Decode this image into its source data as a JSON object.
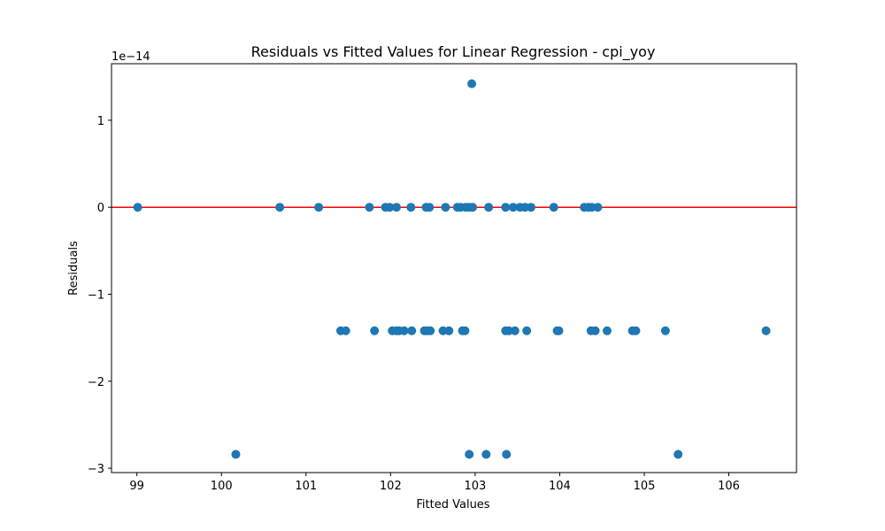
{
  "chart_data": {
    "type": "scatter",
    "title": "Residuals vs Fitted Values for Linear Regression - cpi_yoy",
    "xlabel": "Fitted Values",
    "ylabel": "Residuals",
    "y_offset_label": "1e−14",
    "xlim": [
      98.7,
      106.8
    ],
    "ylim": [
      -3.05,
      1.65
    ],
    "x_ticks": [
      99,
      100,
      101,
      102,
      103,
      104,
      105,
      106
    ],
    "y_ticks": [
      -3,
      -2,
      -1,
      0,
      1
    ],
    "x_tick_labels": [
      "99",
      "100",
      "101",
      "102",
      "103",
      "104",
      "105",
      "106"
    ],
    "y_tick_labels": [
      "−3",
      "−2",
      "−1",
      "0",
      "1"
    ],
    "reference_line": {
      "y": 0,
      "color": "#ff0000"
    },
    "grid": false,
    "point_color": "#1f77b4",
    "points": [
      {
        "x": 99.01,
        "y": 0
      },
      {
        "x": 100.69,
        "y": 0
      },
      {
        "x": 101.15,
        "y": 0
      },
      {
        "x": 101.75,
        "y": 0
      },
      {
        "x": 101.94,
        "y": 0
      },
      {
        "x": 101.99,
        "y": 0
      },
      {
        "x": 102.07,
        "y": 0
      },
      {
        "x": 102.24,
        "y": 0
      },
      {
        "x": 102.42,
        "y": 0
      },
      {
        "x": 102.46,
        "y": 0
      },
      {
        "x": 102.65,
        "y": 0
      },
      {
        "x": 102.79,
        "y": 0
      },
      {
        "x": 102.83,
        "y": 0
      },
      {
        "x": 102.89,
        "y": 0
      },
      {
        "x": 102.93,
        "y": 0
      },
      {
        "x": 102.97,
        "y": 0
      },
      {
        "x": 103.16,
        "y": 0
      },
      {
        "x": 103.36,
        "y": 0
      },
      {
        "x": 103.45,
        "y": 0
      },
      {
        "x": 103.53,
        "y": 0
      },
      {
        "x": 103.59,
        "y": 0
      },
      {
        "x": 103.66,
        "y": 0
      },
      {
        "x": 103.93,
        "y": 0
      },
      {
        "x": 104.29,
        "y": 0
      },
      {
        "x": 104.34,
        "y": 0
      },
      {
        "x": 104.38,
        "y": 0
      },
      {
        "x": 104.45,
        "y": 0
      },
      {
        "x": 102.96,
        "y": 1.42
      },
      {
        "x": 101.41,
        "y": -1.42
      },
      {
        "x": 101.47,
        "y": -1.42
      },
      {
        "x": 101.81,
        "y": -1.42
      },
      {
        "x": 102.02,
        "y": -1.42
      },
      {
        "x": 102.07,
        "y": -1.42
      },
      {
        "x": 102.1,
        "y": -1.42
      },
      {
        "x": 102.16,
        "y": -1.42
      },
      {
        "x": 102.25,
        "y": -1.42
      },
      {
        "x": 102.4,
        "y": -1.42
      },
      {
        "x": 102.43,
        "y": -1.42
      },
      {
        "x": 102.47,
        "y": -1.42
      },
      {
        "x": 102.62,
        "y": -1.42
      },
      {
        "x": 102.69,
        "y": -1.42
      },
      {
        "x": 102.85,
        "y": -1.42
      },
      {
        "x": 102.88,
        "y": -1.42
      },
      {
        "x": 103.36,
        "y": -1.42
      },
      {
        "x": 103.4,
        "y": -1.42
      },
      {
        "x": 103.47,
        "y": -1.42
      },
      {
        "x": 103.61,
        "y": -1.42
      },
      {
        "x": 103.97,
        "y": -1.42
      },
      {
        "x": 103.99,
        "y": -1.42
      },
      {
        "x": 104.37,
        "y": -1.42
      },
      {
        "x": 104.42,
        "y": -1.42
      },
      {
        "x": 104.56,
        "y": -1.42
      },
      {
        "x": 104.86,
        "y": -1.42
      },
      {
        "x": 104.9,
        "y": -1.42
      },
      {
        "x": 105.25,
        "y": -1.42
      },
      {
        "x": 106.44,
        "y": -1.42
      },
      {
        "x": 100.17,
        "y": -2.84
      },
      {
        "x": 102.93,
        "y": -2.84
      },
      {
        "x": 103.13,
        "y": -2.84
      },
      {
        "x": 103.37,
        "y": -2.84
      },
      {
        "x": 105.4,
        "y": -2.84
      }
    ]
  }
}
